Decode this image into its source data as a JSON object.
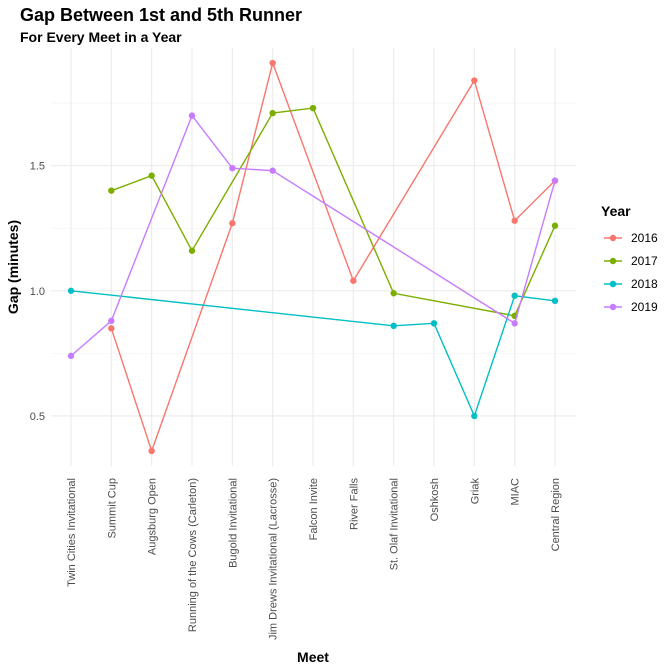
{
  "chart_data": {
    "type": "line",
    "title": "Gap Between 1st and 5th Runner",
    "subtitle": "For Every Meet in a Year",
    "xlabel": "Meet",
    "ylabel": "Gap (minutes)",
    "categories": [
      "Twin Cities Invitational",
      "Summit Cup",
      "Augsburg Open",
      "Running of the Cows (Carleton)",
      "Bugold Invitational",
      "Jim Drews Invitational (Lacrosse)",
      "Falcon Invite",
      "River Falls",
      "St. Olaf Invitational",
      "Oshkosh",
      "Griak",
      "MIAC",
      "Central Region"
    ],
    "ylim": [
      0.3,
      1.97
    ],
    "yticks": [
      0.5,
      1.0,
      1.5
    ],
    "ytick_labels": [
      "0.5",
      "1.0",
      "1.5"
    ],
    "grid": true,
    "legend": {
      "title": "Year",
      "position": "right"
    },
    "series": [
      {
        "name": "2016",
        "color": "#F8766D",
        "points": [
          {
            "x": "Summit Cup",
            "y": 0.85
          },
          {
            "x": "Augsburg Open",
            "y": 0.36
          },
          {
            "x": "Bugold Invitational",
            "y": 1.27
          },
          {
            "x": "Jim Drews Invitational (Lacrosse)",
            "y": 1.91
          },
          {
            "x": "River Falls",
            "y": 1.04
          },
          {
            "x": "Griak",
            "y": 1.84
          },
          {
            "x": "MIAC",
            "y": 1.28
          },
          {
            "x": "Central Region",
            "y": 1.44
          }
        ]
      },
      {
        "name": "2017",
        "color": "#7CAE00",
        "points": [
          {
            "x": "Summit Cup",
            "y": 1.4
          },
          {
            "x": "Augsburg Open",
            "y": 1.46
          },
          {
            "x": "Running of the Cows (Carleton)",
            "y": 1.16
          },
          {
            "x": "Jim Drews Invitational (Lacrosse)",
            "y": 1.71
          },
          {
            "x": "Falcon Invite",
            "y": 1.73
          },
          {
            "x": "St. Olaf Invitational",
            "y": 0.99
          },
          {
            "x": "MIAC",
            "y": 0.9
          },
          {
            "x": "Central Region",
            "y": 1.26
          }
        ]
      },
      {
        "name": "2018",
        "color": "#00BFC4",
        "points": [
          {
            "x": "Twin Cities Invitational",
            "y": 1.0
          },
          {
            "x": "St. Olaf Invitational",
            "y": 0.86
          },
          {
            "x": "Oshkosh",
            "y": 0.87
          },
          {
            "x": "Griak",
            "y": 0.5
          },
          {
            "x": "MIAC",
            "y": 0.98
          },
          {
            "x": "Central Region",
            "y": 0.96
          }
        ]
      },
      {
        "name": "2019",
        "color": "#C77CFF",
        "points": [
          {
            "x": "Twin Cities Invitational",
            "y": 0.74
          },
          {
            "x": "Summit Cup",
            "y": 0.88
          },
          {
            "x": "Running of the Cows (Carleton)",
            "y": 1.7
          },
          {
            "x": "Bugold Invitational",
            "y": 1.49
          },
          {
            "x": "Jim Drews Invitational (Lacrosse)",
            "y": 1.48
          },
          {
            "x": "MIAC",
            "y": 0.87
          },
          {
            "x": "Central Region",
            "y": 1.44
          }
        ]
      }
    ]
  }
}
